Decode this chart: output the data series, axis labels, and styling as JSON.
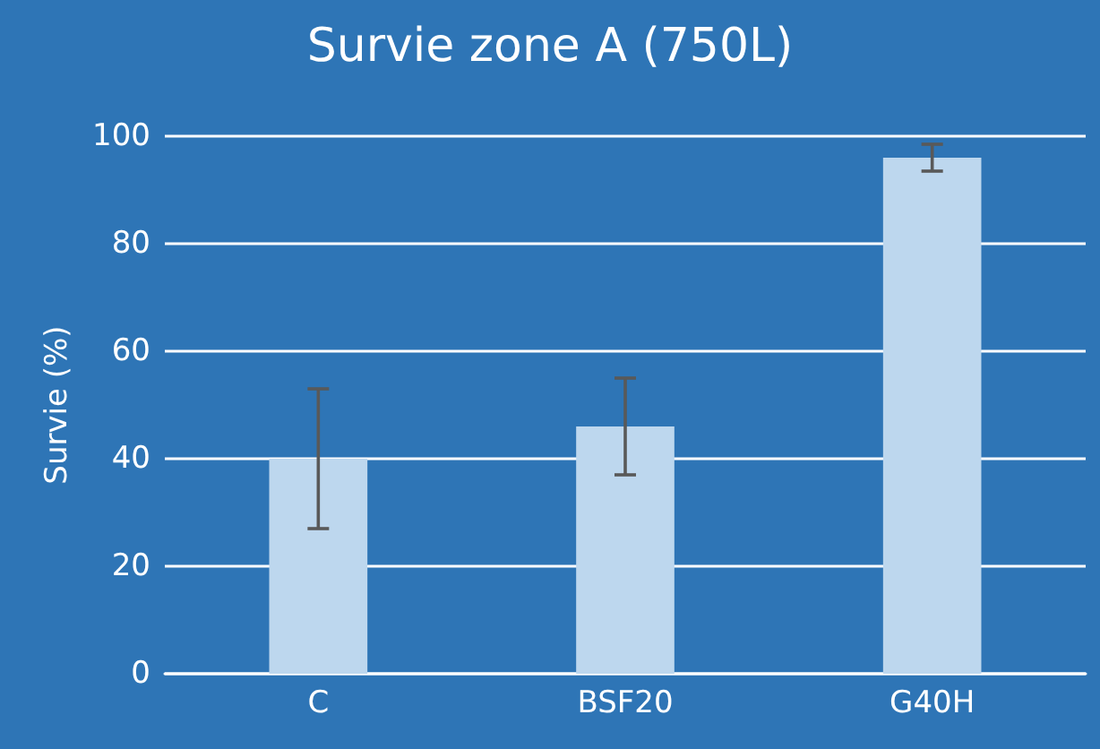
{
  "chart_data": {
    "type": "bar",
    "title": "Survie zone A (750L)",
    "ylabel": "Survie (%)",
    "categories": [
      "C",
      "BSF20",
      "G40H"
    ],
    "values": [
      40,
      46,
      96
    ],
    "errors": [
      13,
      9,
      2.5
    ],
    "color": "#bdd7ee",
    "ylim": [
      0,
      100
    ],
    "yticks": [
      0,
      20,
      40,
      60,
      80,
      100
    ],
    "grid": "y"
  }
}
